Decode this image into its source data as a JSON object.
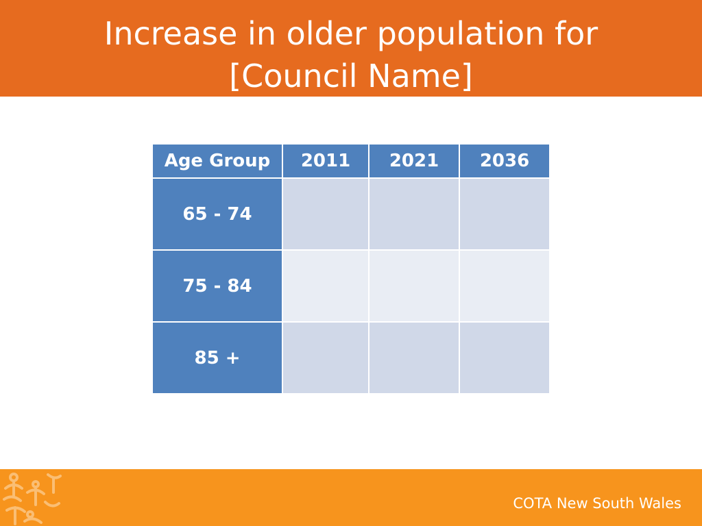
{
  "slide": {
    "title_line1": "Increase in older population for",
    "title_line2": "[Council Name]",
    "footer_text": "COTA New South Wales",
    "colors": {
      "title_bar": "#e66b1f",
      "footer_bar": "#f7941d",
      "header_cell": "#4f81bd",
      "row_band_dark": "#d0d8e8",
      "row_band_light": "#e9edf4"
    }
  },
  "table": {
    "headers": [
      "Age Group",
      "2011",
      "2021",
      "2036"
    ],
    "rows": [
      {
        "age_group": "65 - 74",
        "y2011": "",
        "y2021": "",
        "y2036": ""
      },
      {
        "age_group": "75 - 84",
        "y2011": "",
        "y2021": "",
        "y2036": ""
      },
      {
        "age_group": "85 +",
        "y2011": "",
        "y2021": "",
        "y2036": ""
      }
    ]
  },
  "decor": {
    "footer_pattern_icon": "abstract-figures-pattern-icon"
  }
}
